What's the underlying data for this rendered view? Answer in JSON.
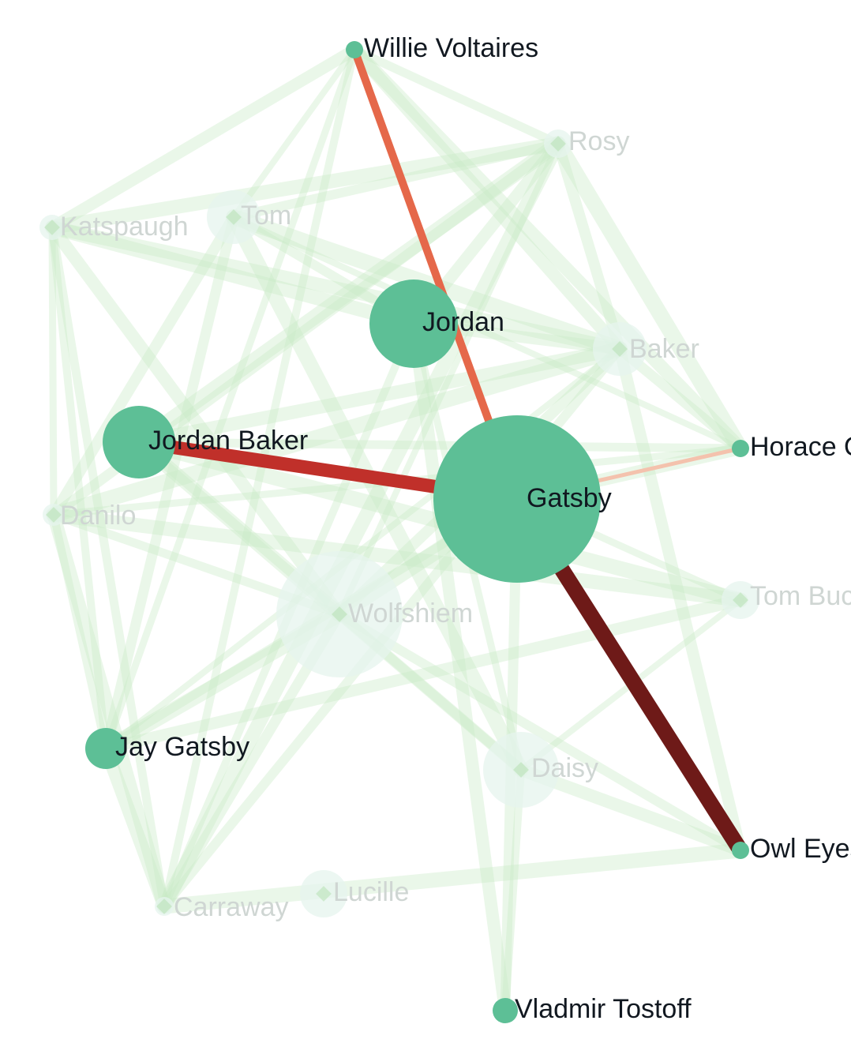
{
  "graph": {
    "colors": {
      "node": "#5dbf96",
      "node_faded": "#e6f4ee",
      "edge_faded": "#c9e9c4",
      "edge_highlight_light": "#e5684a",
      "edge_highlight_mid": "#c0302a",
      "edge_highlight_dark": "#6e1a18",
      "edge_highlight_pale": "#f4c2ad",
      "label_active": "#111820",
      "label_faded": "#cfd6d3"
    },
    "nodes": [
      {
        "id": "gatsby",
        "label": "Gatsby",
        "active": true
      },
      {
        "id": "jordan",
        "label": "Jordan",
        "active": true
      },
      {
        "id": "jordan-baker",
        "label": "Jordan Baker",
        "active": true
      },
      {
        "id": "jay-gatsby",
        "label": "Jay Gatsby",
        "active": true
      },
      {
        "id": "willie-voltaires",
        "label": "Willie Voltaires",
        "active": true
      },
      {
        "id": "horace",
        "label": "Horace O",
        "active": true
      },
      {
        "id": "owl-eyes",
        "label": "Owl Eyes",
        "active": true
      },
      {
        "id": "vladmir-tostoff",
        "label": "Vladmir Tostoff",
        "active": true
      },
      {
        "id": "rosy",
        "label": "Rosy",
        "active": false
      },
      {
        "id": "tom",
        "label": "Tom",
        "active": false
      },
      {
        "id": "katspaugh",
        "label": "Katspaugh",
        "active": false
      },
      {
        "id": "baker",
        "label": "Baker",
        "active": false
      },
      {
        "id": "danilo",
        "label": "Danilo",
        "active": false
      },
      {
        "id": "wolfshiem",
        "label": "Wolfshiem",
        "active": false
      },
      {
        "id": "tom-buchanan",
        "label": "Tom Buchanan",
        "active": false
      },
      {
        "id": "daisy",
        "label": "Daisy",
        "active": false
      },
      {
        "id": "carraway",
        "label": "Carraway",
        "active": false
      },
      {
        "id": "lucille",
        "label": "Lucille",
        "active": false
      }
    ],
    "highlight_edges": [
      {
        "source": "gatsby",
        "target": "owl-eyes",
        "color": "edge_highlight_dark"
      },
      {
        "source": "gatsby",
        "target": "jordan-baker",
        "color": "edge_highlight_mid"
      },
      {
        "source": "gatsby",
        "target": "willie-voltaires",
        "color": "edge_highlight_light"
      },
      {
        "source": "gatsby",
        "target": "horace",
        "color": "edge_highlight_pale"
      }
    ],
    "faded_edges": [
      [
        "willie-voltaires",
        "tom"
      ],
      [
        "willie-voltaires",
        "katspaugh"
      ],
      [
        "willie-voltaires",
        "jay-gatsby"
      ],
      [
        "willie-voltaires",
        "baker"
      ],
      [
        "willie-voltaires",
        "carraway"
      ],
      [
        "willie-voltaires",
        "horace"
      ],
      [
        "willie-voltaires",
        "rosy"
      ],
      [
        "rosy",
        "katspaugh"
      ],
      [
        "rosy",
        "tom"
      ],
      [
        "rosy",
        "jordan-baker"
      ],
      [
        "rosy",
        "danilo"
      ],
      [
        "rosy",
        "horace"
      ],
      [
        "rosy",
        "baker"
      ],
      [
        "rosy",
        "wolfshiem"
      ],
      [
        "rosy",
        "jordan"
      ],
      [
        "katspaugh",
        "danilo"
      ],
      [
        "katspaugh",
        "wolfshiem"
      ],
      [
        "katspaugh",
        "jay-gatsby"
      ],
      [
        "katspaugh",
        "baker"
      ],
      [
        "katspaugh",
        "carraway"
      ],
      [
        "katspaugh",
        "jordan"
      ],
      [
        "tom",
        "jordan"
      ],
      [
        "tom",
        "daisy"
      ],
      [
        "tom",
        "jay-gatsby"
      ],
      [
        "tom",
        "baker"
      ],
      [
        "tom",
        "danilo"
      ],
      [
        "tom",
        "horace"
      ],
      [
        "jordan",
        "baker"
      ],
      [
        "jordan",
        "daisy"
      ],
      [
        "jordan",
        "vladmir-tostoff"
      ],
      [
        "jordan",
        "carraway"
      ],
      [
        "jordan-baker",
        "baker"
      ],
      [
        "jordan-baker",
        "horace"
      ],
      [
        "jordan-baker",
        "wolfshiem"
      ],
      [
        "jordan-baker",
        "daisy"
      ],
      [
        "jordan-baker",
        "tom-buchanan"
      ],
      [
        "baker",
        "horace"
      ],
      [
        "baker",
        "danilo"
      ],
      [
        "baker",
        "wolfshiem"
      ],
      [
        "baker",
        "jay-gatsby"
      ],
      [
        "baker",
        "owl-eyes"
      ],
      [
        "horace",
        "danilo"
      ],
      [
        "horace",
        "gatsby"
      ],
      [
        "danilo",
        "jay-gatsby"
      ],
      [
        "danilo",
        "carraway"
      ],
      [
        "danilo",
        "wolfshiem"
      ],
      [
        "danilo",
        "tom-buchanan"
      ],
      [
        "wolfshiem",
        "owl-eyes"
      ],
      [
        "wolfshiem",
        "jay-gatsby"
      ],
      [
        "wolfshiem",
        "carraway"
      ],
      [
        "wolfshiem",
        "gatsby"
      ],
      [
        "wolfshiem",
        "daisy"
      ],
      [
        "tom-buchanan",
        "daisy"
      ],
      [
        "tom-buchanan",
        "jay-gatsby"
      ],
      [
        "tom-buchanan",
        "gatsby"
      ],
      [
        "daisy",
        "owl-eyes"
      ],
      [
        "daisy",
        "vladmir-tostoff"
      ],
      [
        "jay-gatsby",
        "carraway"
      ],
      [
        "jay-gatsby",
        "gatsby"
      ],
      [
        "carraway",
        "rosy"
      ],
      [
        "carraway",
        "baker"
      ],
      [
        "owl-eyes",
        "carraway"
      ],
      [
        "vladmir-tostoff",
        "gatsby"
      ]
    ]
  }
}
